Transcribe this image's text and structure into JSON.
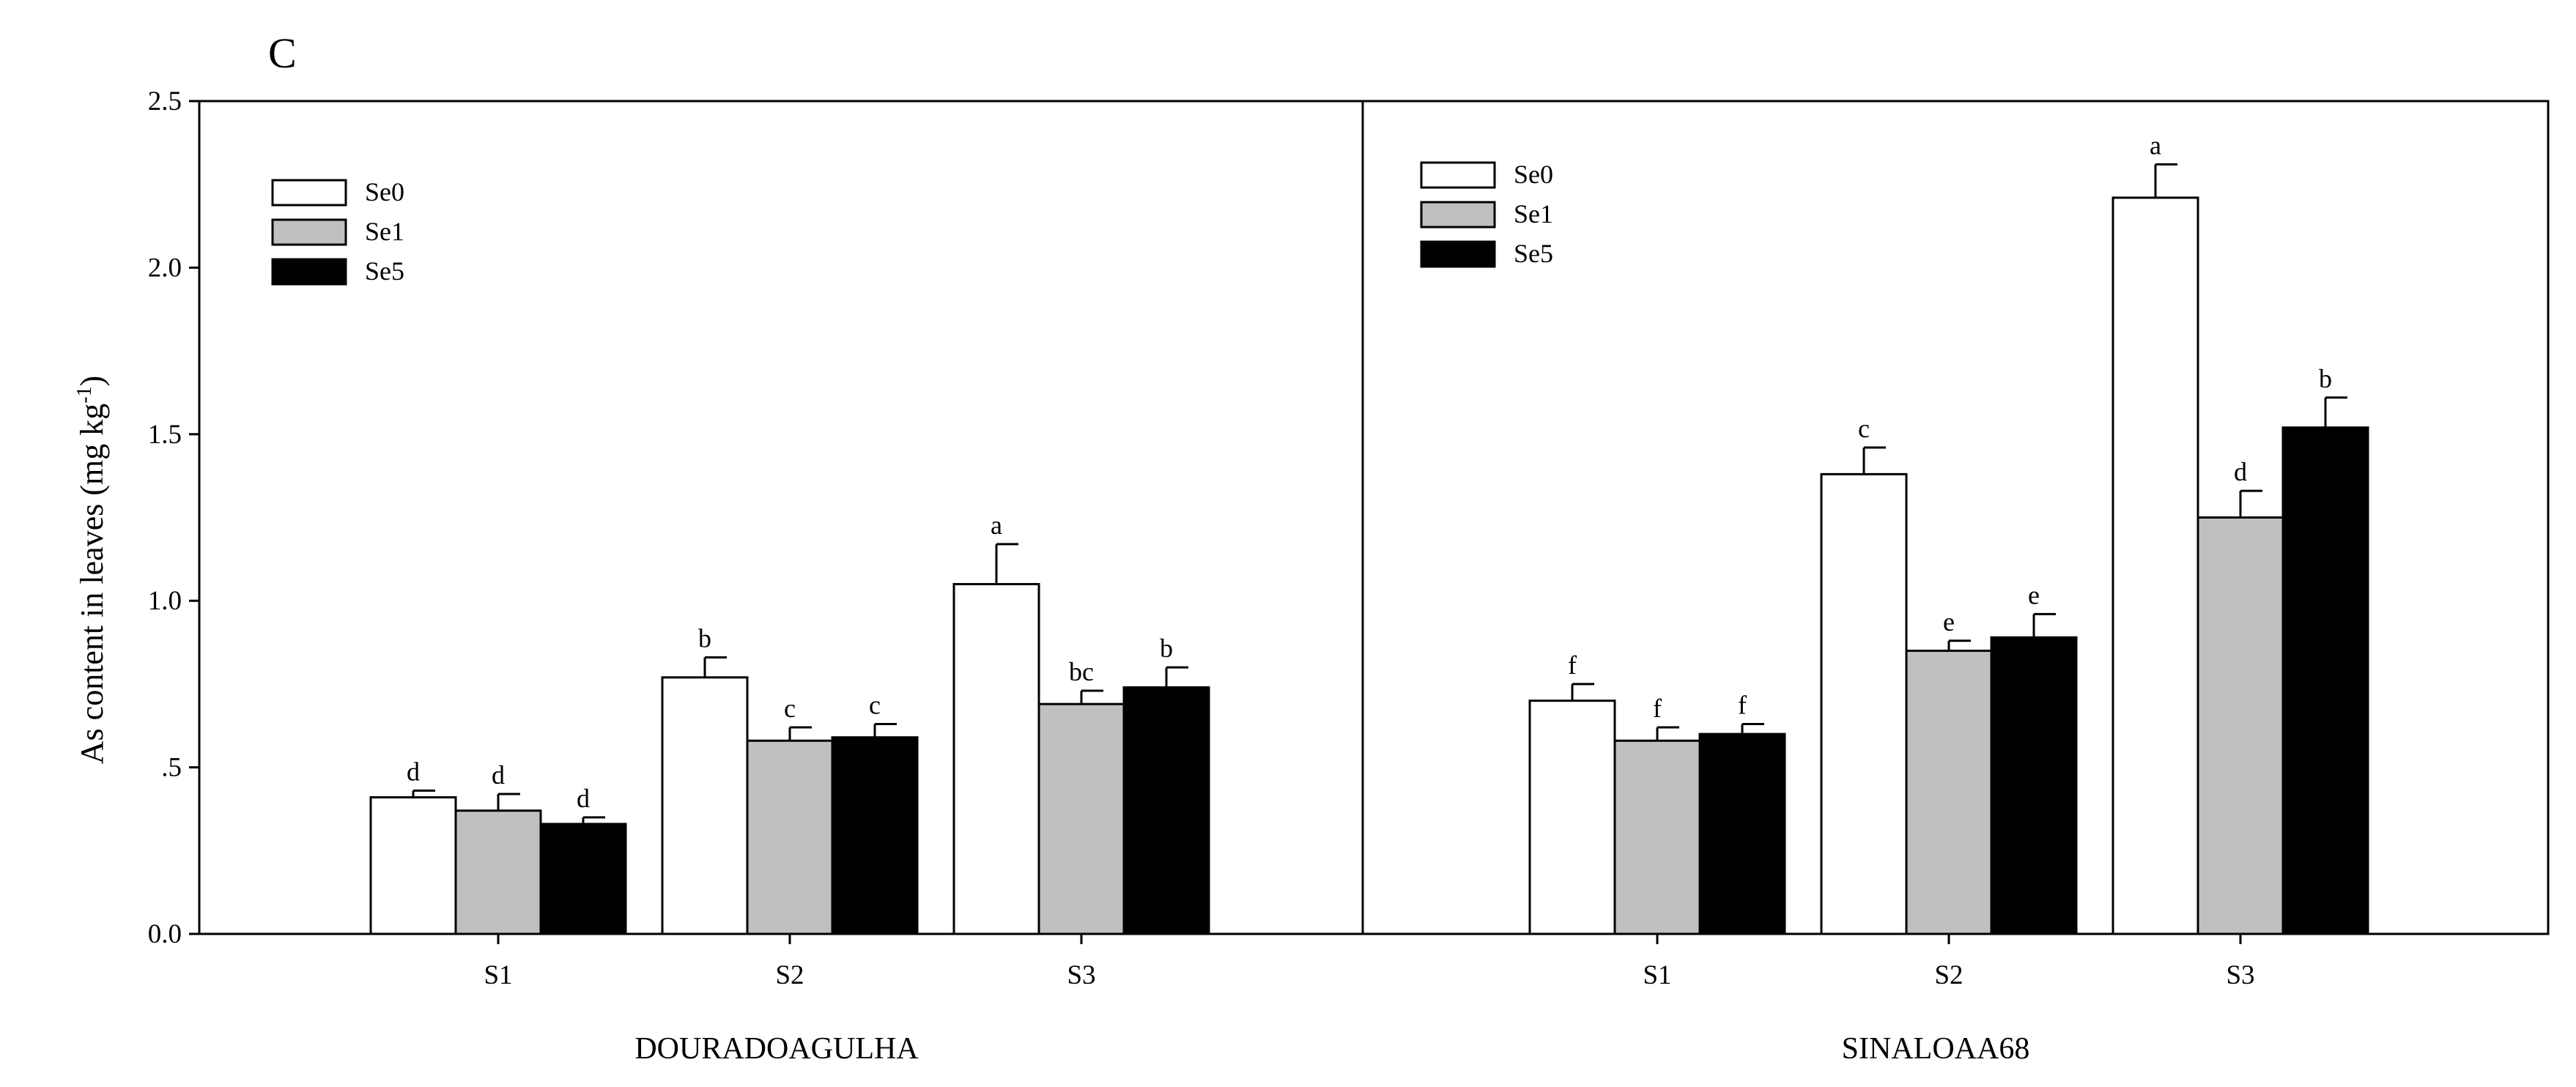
{
  "panel_label": "C",
  "colors": {
    "Se0": "#ffffff",
    "Se1": "#c0c0c0",
    "Se5": "#000000",
    "stroke": "#000000"
  },
  "chart_data": {
    "type": "bar",
    "ylabel_main": "As content in leaves (mg kg",
    "ylabel_sup": "-1",
    "ylabel_close": ")",
    "ylim": [
      0,
      2.5
    ],
    "yticks": [
      0,
      0.5,
      1.0,
      1.5,
      2.0,
      2.5
    ],
    "ytick_labels": [
      "0.0",
      ".5",
      "1.0",
      "1.5",
      "2.0",
      "2.5"
    ],
    "legend_entries": [
      "Se0",
      "Se1",
      "Se5"
    ],
    "panels": [
      {
        "name": "DOURADOAGULHA",
        "categories": [
          "S1",
          "S2",
          "S3"
        ],
        "series": [
          {
            "name": "Se0",
            "values": [
              0.41,
              0.77,
              1.05
            ],
            "errors": [
              0.02,
              0.06,
              0.12
            ],
            "letters": [
              "d",
              "b",
              "a"
            ]
          },
          {
            "name": "Se1",
            "values": [
              0.37,
              0.58,
              0.69
            ],
            "errors": [
              0.05,
              0.04,
              0.04
            ],
            "letters": [
              "d",
              "c",
              "bc"
            ]
          },
          {
            "name": "Se5",
            "values": [
              0.33,
              0.59,
              0.74
            ],
            "errors": [
              0.02,
              0.04,
              0.06
            ],
            "letters": [
              "d",
              "c",
              "b"
            ]
          }
        ]
      },
      {
        "name": "SINALOAA68",
        "categories": [
          "S1",
          "S2",
          "S3"
        ],
        "series": [
          {
            "name": "Se0",
            "values": [
              0.7,
              1.38,
              2.21
            ],
            "errors": [
              0.05,
              0.08,
              0.1
            ],
            "letters": [
              "f",
              "c",
              "a"
            ]
          },
          {
            "name": "Se1",
            "values": [
              0.58,
              0.85,
              1.25
            ],
            "errors": [
              0.04,
              0.03,
              0.08
            ],
            "letters": [
              "f",
              "e",
              "d"
            ]
          },
          {
            "name": "Se5",
            "values": [
              0.6,
              0.89,
              1.52
            ],
            "errors": [
              0.03,
              0.07,
              0.09
            ],
            "letters": [
              "f",
              "e",
              "b"
            ]
          }
        ]
      }
    ]
  }
}
